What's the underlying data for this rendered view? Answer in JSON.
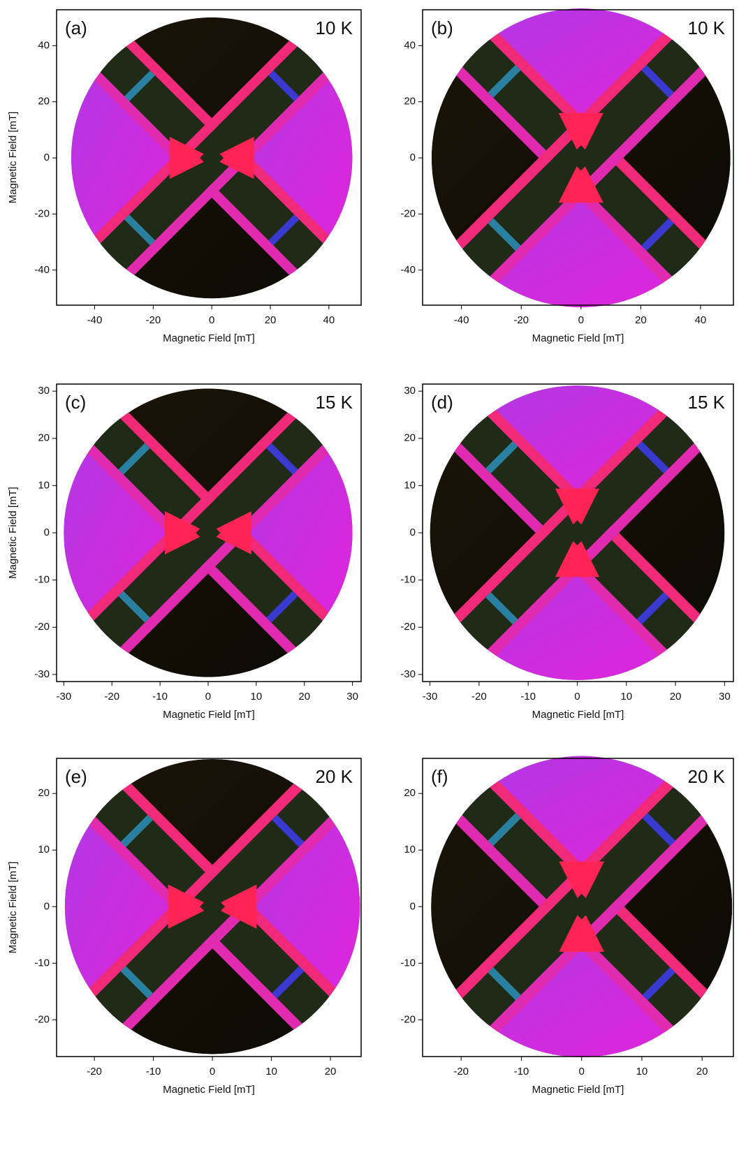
{
  "chart_data": [
    {
      "type": "heatmap",
      "panel_label": "(a)",
      "annotation": "10 K",
      "xlabel": "Magnetic Field [mT]",
      "ylabel": "Magnetic Field [mT]",
      "xlim": [
        -53,
        51
      ],
      "ylim": [
        -52.5,
        52.8
      ],
      "xticks": [
        -40,
        -20,
        0,
        20,
        40
      ],
      "yticks": [
        40,
        20,
        0,
        -20,
        -40
      ],
      "radius": 48
    },
    {
      "type": "heatmap",
      "panel_label": "(b)",
      "annotation": "10 K",
      "xlabel": "Magnetic Field [mT]",
      "xlim": [
        -53,
        51
      ],
      "ylim": [
        -52.5,
        52.8
      ],
      "xticks": [
        -40,
        -20,
        0,
        20,
        40
      ],
      "yticks": [
        40,
        20,
        0,
        -20,
        -40
      ],
      "radius": 50
    },
    {
      "type": "heatmap",
      "panel_label": "(c)",
      "annotation": "15 K",
      "xlabel": "Magnetic Field [mT]",
      "ylabel": "Magnetic Field [mT]",
      "xlim": [
        -31.5,
        31.8
      ],
      "ylim": [
        -31.5,
        31.5
      ],
      "xticks": [
        -30,
        -20,
        -10,
        0,
        10,
        20,
        30
      ],
      "yticks": [
        30,
        20,
        10,
        0,
        -10,
        -20,
        -30
      ],
      "radius": 30
    },
    {
      "type": "heatmap",
      "panel_label": "(d)",
      "annotation": "15 K",
      "xlabel": "Magnetic Field [mT]",
      "xlim": [
        -31.5,
        31.8
      ],
      "ylim": [
        -31.5,
        31.5
      ],
      "xticks": [
        -30,
        -20,
        -10,
        0,
        10,
        20,
        30
      ],
      "yticks": [
        30,
        20,
        10,
        0,
        -10,
        -20,
        -30
      ],
      "radius": 30
    },
    {
      "type": "heatmap",
      "panel_label": "(e)",
      "annotation": "20 K",
      "xlabel": "Magnetic Field [mT]",
      "ylabel": "Magnetic Field [mT]",
      "xlim": [
        -26.4,
        25.2
      ],
      "ylim": [
        -26.5,
        26.2
      ],
      "xticks": [
        -20,
        -10,
        0,
        10,
        20
      ],
      "yticks": [
        20,
        10,
        0,
        -10,
        -20
      ],
      "radius": 25
    },
    {
      "type": "heatmap",
      "panel_label": "(f)",
      "annotation": "20 K",
      "xlabel": "Magnetic Field [mT]",
      "xlim": [
        -26.4,
        25.2
      ],
      "ylim": [
        -26.5,
        26.2
      ],
      "xticks": [
        -20,
        -10,
        0,
        10,
        20
      ],
      "yticks": [
        20,
        10,
        0,
        -10,
        -20
      ],
      "radius": 25
    }
  ]
}
